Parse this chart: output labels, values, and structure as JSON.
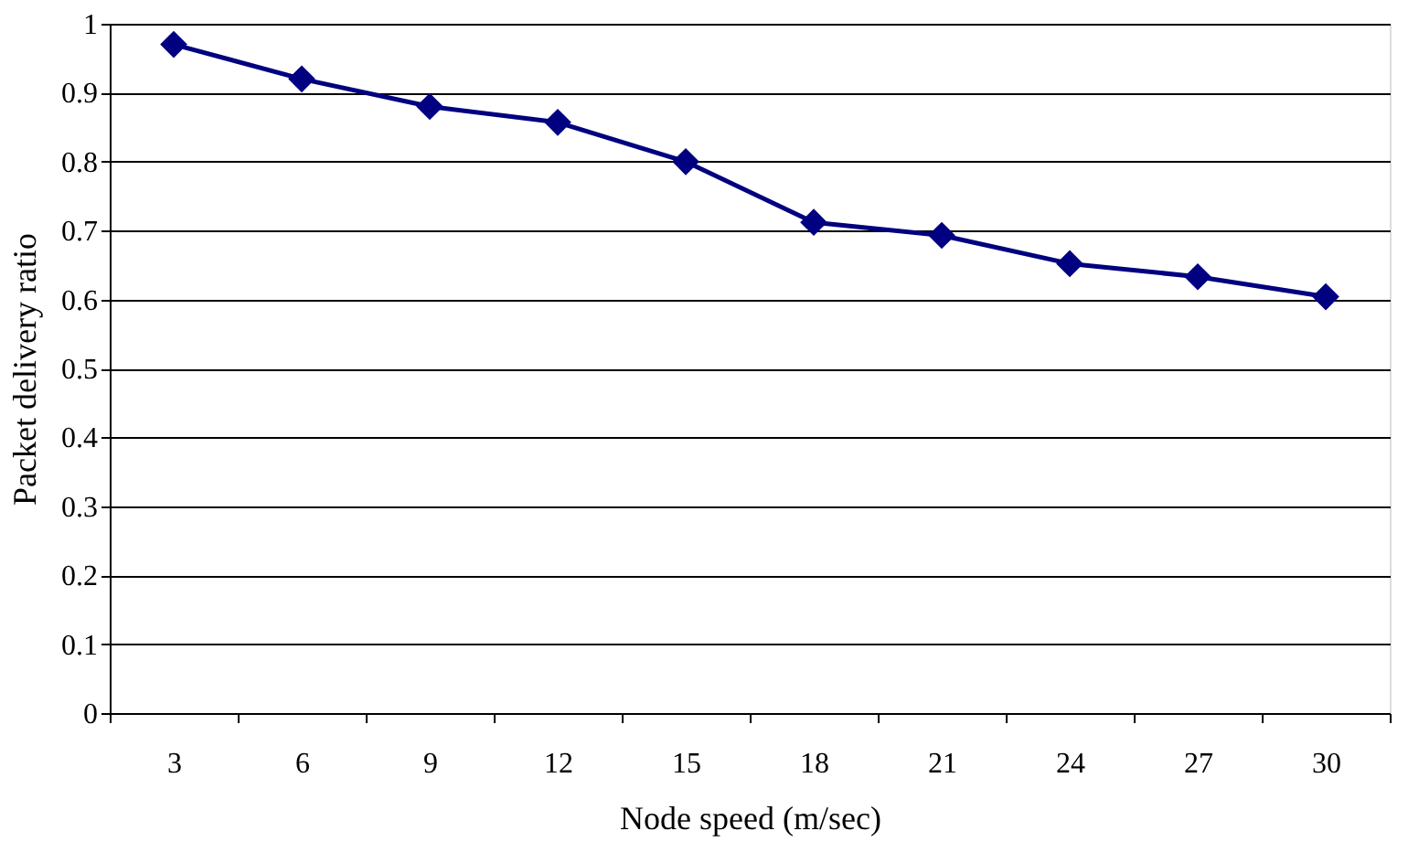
{
  "chart_data": {
    "type": "line",
    "xlabel": "Node speed (m/sec)",
    "ylabel": "Packet delivery ratio",
    "categories": [
      "3",
      "6",
      "9",
      "12",
      "15",
      "18",
      "21",
      "24",
      "27",
      "30"
    ],
    "series": [
      {
        "color": "#000080",
        "values": [
          0.97,
          0.92,
          0.88,
          0.857,
          0.8,
          0.712,
          0.693,
          0.652,
          0.633,
          0.604
        ]
      }
    ],
    "ylim": [
      0,
      1
    ],
    "yticks": [
      0,
      0.1,
      0.2,
      0.3,
      0.4,
      0.5,
      0.6,
      0.7,
      0.8,
      0.9,
      1
    ],
    "grid": "y",
    "marker": "diamond",
    "line_style": "solid",
    "legend": false
  }
}
